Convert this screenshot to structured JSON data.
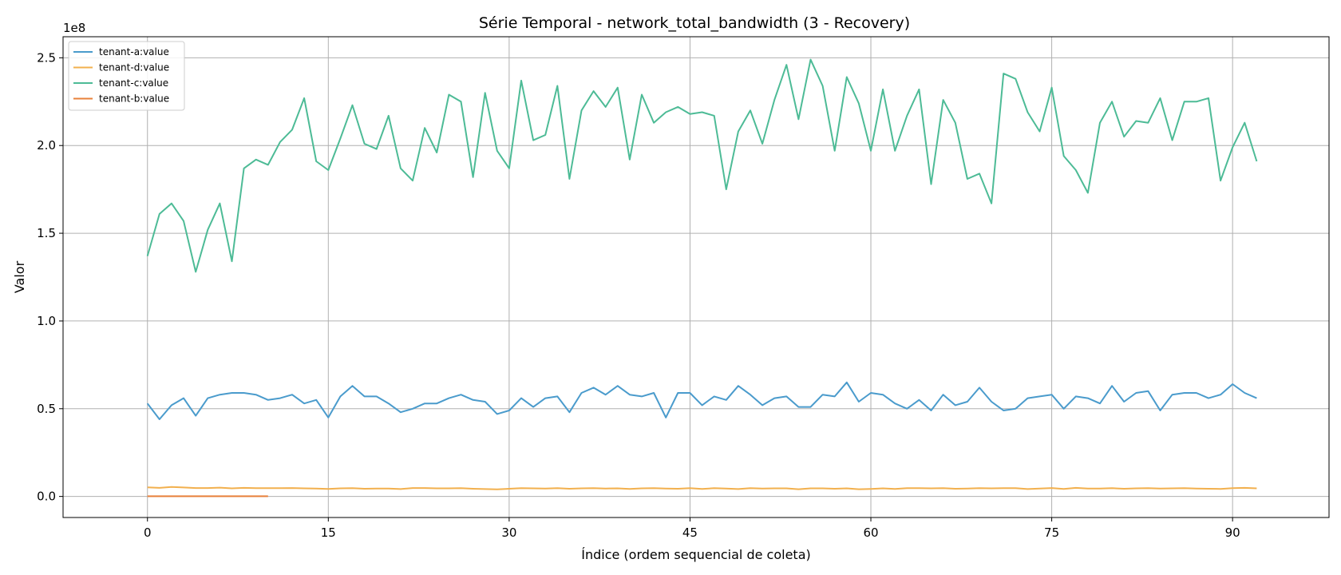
{
  "chart_data": {
    "type": "line",
    "title": "Série Temporal - network_total_bandwidth (3 - Recovery)",
    "xlabel": "Índice (ordem sequencial de coleta)",
    "ylabel": "Valor",
    "offset_text": "1e8",
    "xlim": [
      -7,
      98
    ],
    "ylim": [
      -0.12,
      2.62
    ],
    "x_ticks": [
      0,
      15,
      30,
      45,
      60,
      75,
      90
    ],
    "x_tick_labels": [
      "0",
      "15",
      "30",
      "45",
      "60",
      "75",
      "90"
    ],
    "y_ticks": [
      0.0,
      0.5,
      1.0,
      1.5,
      2.0,
      2.5
    ],
    "y_tick_labels": [
      "0.0",
      "0.5",
      "1.0",
      "1.5",
      "2.0",
      "2.5"
    ],
    "grid": true,
    "legend_position": "top-left",
    "series": [
      {
        "name": "tenant-a:value",
        "color": "#4a9bcc",
        "values": [
          0.53,
          0.44,
          0.52,
          0.56,
          0.46,
          0.56,
          0.58,
          0.59,
          0.59,
          0.58,
          0.55,
          0.56,
          0.58,
          0.53,
          0.55,
          0.45,
          0.57,
          0.63,
          0.57,
          0.57,
          0.53,
          0.48,
          0.5,
          0.53,
          0.53,
          0.56,
          0.58,
          0.55,
          0.54,
          0.47,
          0.49,
          0.56,
          0.51,
          0.56,
          0.57,
          0.48,
          0.59,
          0.62,
          0.58,
          0.63,
          0.58,
          0.57,
          0.59,
          0.45,
          0.59,
          0.59,
          0.52,
          0.57,
          0.55,
          0.63,
          0.58,
          0.52,
          0.56,
          0.57,
          0.51,
          0.51,
          0.58,
          0.57,
          0.65,
          0.54,
          0.59,
          0.58,
          0.53,
          0.5,
          0.55,
          0.49,
          0.58,
          0.52,
          0.54,
          0.62,
          0.54,
          0.49,
          0.5,
          0.56,
          0.57,
          0.58,
          0.5,
          0.57,
          0.56,
          0.53,
          0.63,
          0.54,
          0.59,
          0.6,
          0.49,
          0.58,
          0.59,
          0.59,
          0.56,
          0.58,
          0.64,
          0.59,
          0.56
        ]
      },
      {
        "name": "tenant-d:value",
        "color": "#f2b04e",
        "values": [
          0.052,
          0.049,
          0.054,
          0.051,
          0.048,
          0.048,
          0.05,
          0.046,
          0.049,
          0.047,
          0.047,
          0.047,
          0.048,
          0.046,
          0.045,
          0.043,
          0.046,
          0.047,
          0.044,
          0.045,
          0.045,
          0.042,
          0.048,
          0.048,
          0.046,
          0.046,
          0.047,
          0.044,
          0.042,
          0.04,
          0.044,
          0.047,
          0.046,
          0.045,
          0.047,
          0.044,
          0.046,
          0.047,
          0.045,
          0.046,
          0.043,
          0.046,
          0.047,
          0.045,
          0.044,
          0.047,
          0.043,
          0.047,
          0.045,
          0.042,
          0.047,
          0.045,
          0.046,
          0.046,
          0.041,
          0.046,
          0.046,
          0.044,
          0.046,
          0.041,
          0.043,
          0.046,
          0.043,
          0.047,
          0.047,
          0.046,
          0.047,
          0.044,
          0.045,
          0.047,
          0.046,
          0.047,
          0.047,
          0.042,
          0.045,
          0.048,
          0.043,
          0.049,
          0.045,
          0.045,
          0.047,
          0.044,
          0.046,
          0.047,
          0.045,
          0.046,
          0.047,
          0.045,
          0.044,
          0.043,
          0.047,
          0.049,
          0.046
        ]
      },
      {
        "name": "tenant-c:value",
        "color": "#4dbb96",
        "values": [
          1.37,
          1.61,
          1.67,
          1.57,
          1.28,
          1.52,
          1.67,
          1.34,
          1.87,
          1.92,
          1.89,
          2.02,
          2.09,
          2.27,
          1.91,
          1.86,
          2.04,
          2.23,
          2.01,
          1.98,
          2.17,
          1.87,
          1.8,
          2.1,
          1.96,
          2.29,
          2.25,
          1.82,
          2.3,
          1.97,
          1.87,
          2.37,
          2.03,
          2.06,
          2.34,
          1.81,
          2.2,
          2.31,
          2.22,
          2.33,
          1.92,
          2.29,
          2.13,
          2.19,
          2.22,
          2.18,
          2.19,
          2.17,
          1.75,
          2.08,
          2.2,
          2.01,
          2.26,
          2.46,
          2.15,
          2.49,
          2.34,
          1.97,
          2.39,
          2.24,
          1.97,
          2.32,
          1.97,
          2.17,
          2.32,
          1.78,
          2.26,
          2.13,
          1.81,
          1.84,
          1.67,
          2.41,
          2.38,
          2.19,
          2.08,
          2.33,
          1.94,
          1.86,
          1.73,
          2.13,
          2.25,
          2.05,
          2.14,
          2.13,
          2.27,
          2.03,
          2.25,
          2.25,
          2.27,
          1.8,
          1.99,
          2.13,
          1.91
        ]
      },
      {
        "name": "tenant-b:value",
        "color": "#e8813a",
        "values": [
          0.001,
          0.001,
          0.001,
          0.001,
          0.001,
          0.001,
          0.001,
          0.001,
          0.001,
          0.001,
          0.001
        ]
      }
    ]
  }
}
